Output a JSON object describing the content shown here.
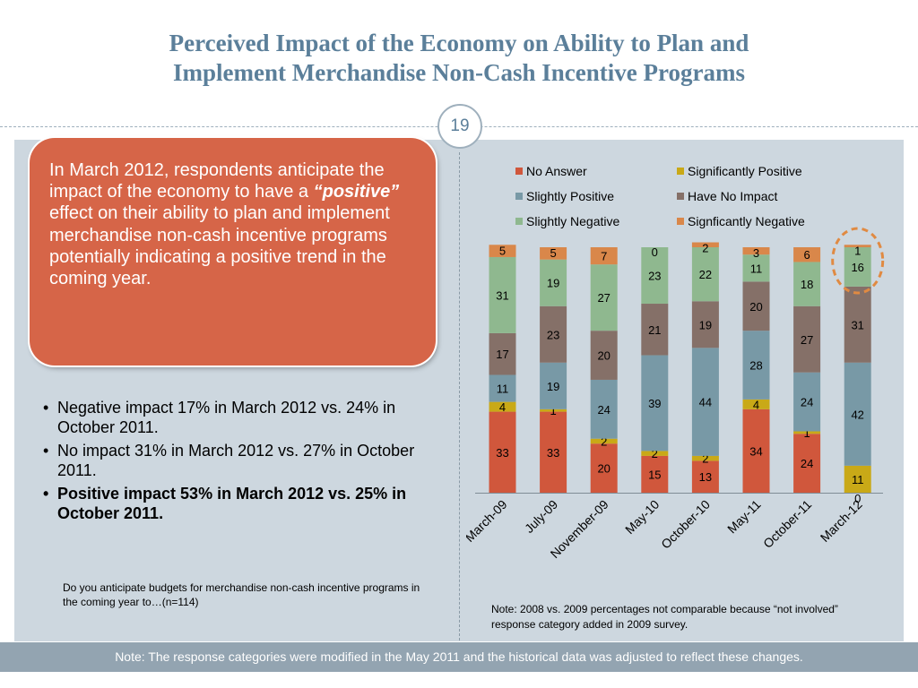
{
  "slide": {
    "title_line1": "Perceived Impact of the Economy on Ability to Plan and",
    "title_line2": "Implement Merchandise Non-Cash Incentive Programs",
    "page_number": "19"
  },
  "callout": {
    "text_before": "In March 2012, respondents anticipate the impact of the economy to have a ",
    "text_emphasis": "“positive”",
    "text_after": " effect on their ability to plan and implement merchandise non-cash incentive programs potentially indicating a positive trend in the coming year."
  },
  "bullets": [
    "Negative impact 17% in March 2012 vs. 24% in October 2011.",
    "No impact 31% in March 2012 vs. 27% in October 2011.",
    "Positive impact 53% in March 2012 vs. 25% in October 2011."
  ],
  "question": "Do you anticipate budgets for merchandise non-cash incentive programs in the coming year to…(n=114)",
  "chart_note": "Note:  2008 vs. 2009 percentages not comparable because “not involved” response category added in 2009 survey.",
  "footer_note": "Note: The response categories were modified in the May 2011 and the historical data was adjusted to reflect these changes.",
  "colors": {
    "title": "#5b7f9a",
    "panel": "#cdd7df",
    "callout": "#d66548",
    "footer": "#93a4b1",
    "highlight": "#e08a42"
  },
  "chart_data": {
    "type": "bar",
    "stacked": true,
    "categories": [
      "March-09",
      "July-09",
      "November-09",
      "May-10",
      "October-10",
      "May-11",
      "October-11",
      "March-12"
    ],
    "ylim": [
      0,
      100
    ],
    "grid": false,
    "legend_position": "top",
    "series": [
      {
        "name": "No Answer",
        "color": "#d0573c",
        "values": [
          33,
          33,
          20,
          15,
          13,
          34,
          24,
          0
        ]
      },
      {
        "name": "Significantly Positive",
        "color": "#c9a917",
        "values": [
          4,
          1,
          2,
          2,
          2,
          4,
          1,
          11
        ]
      },
      {
        "name": "Slightly Positive",
        "color": "#7899a6",
        "values": [
          11,
          19,
          24,
          39,
          44,
          28,
          24,
          42
        ]
      },
      {
        "name": "Have No Impact",
        "color": "#857068",
        "values": [
          17,
          23,
          20,
          21,
          19,
          20,
          27,
          31
        ]
      },
      {
        "name": "Slightly Negative",
        "color": "#8fb88f",
        "values": [
          31,
          19,
          27,
          23,
          22,
          11,
          18,
          16
        ]
      },
      {
        "name": "Signficantly Negative",
        "color": "#d9874a",
        "values": [
          5,
          5,
          7,
          0,
          2,
          3,
          6,
          1
        ]
      }
    ],
    "highlighted_category": "March-12"
  }
}
